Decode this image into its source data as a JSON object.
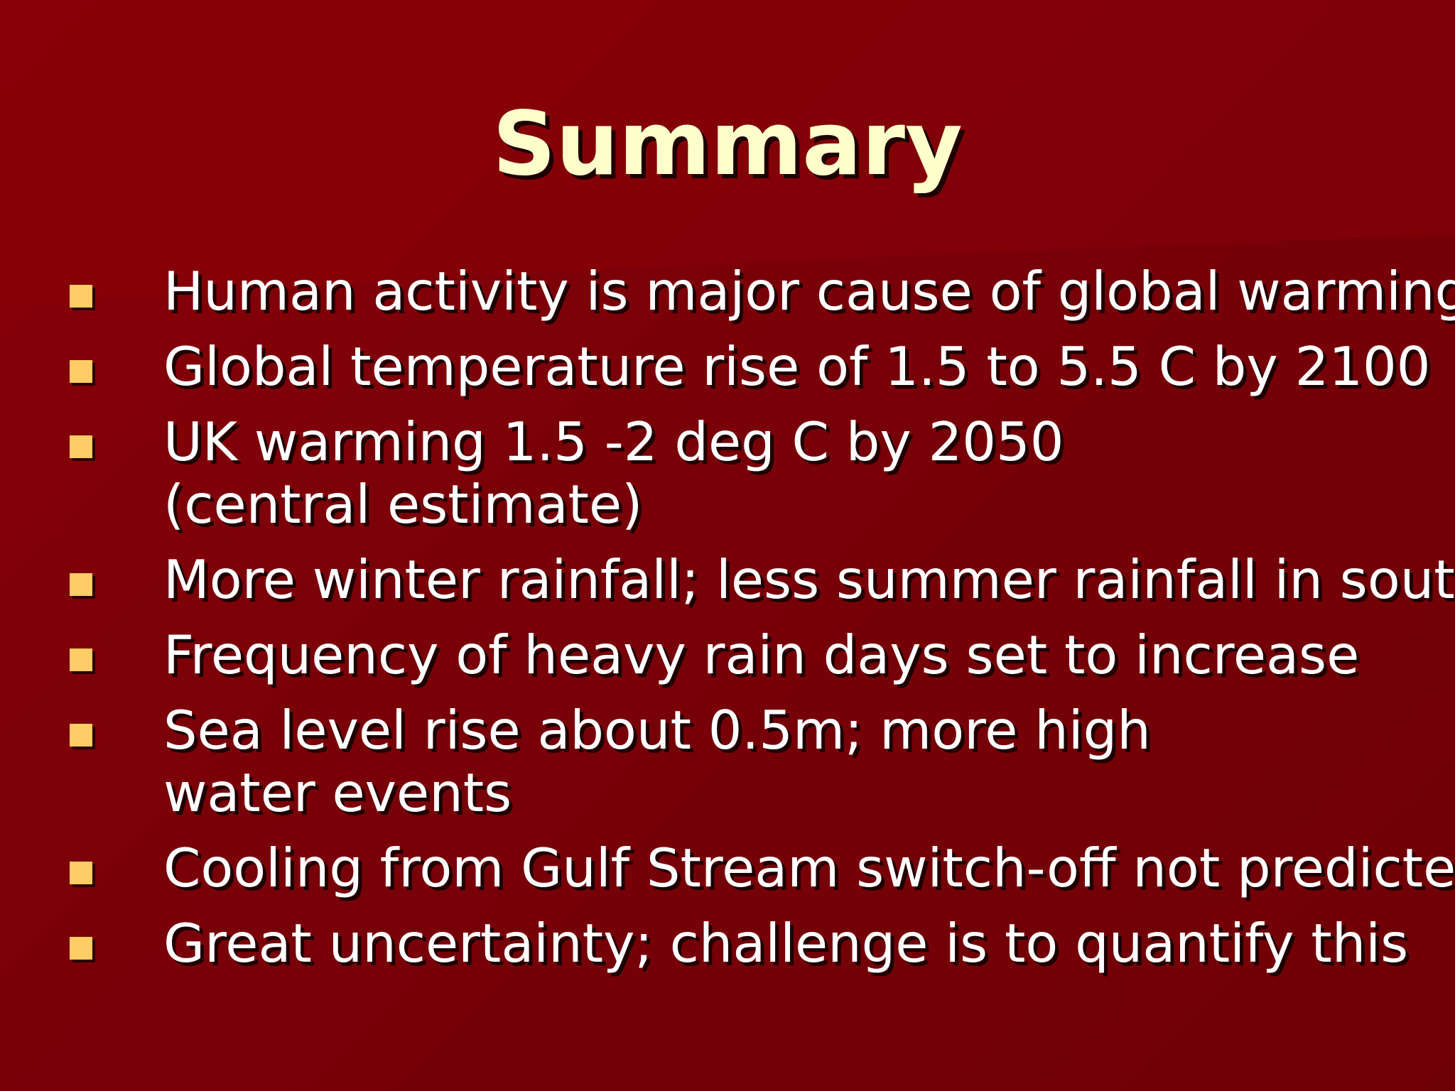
{
  "slide": {
    "title": "Summary",
    "bullets": [
      "Human activity is major cause of global warming",
      "Global temperature rise of 1.5 to 5.5  C by 2100",
      "UK warming 1.5 -2 deg C by 2050 (central estimate)",
      "More winter rainfall; less summer rainfall in south",
      "Frequency of heavy rain days set to increase",
      "Sea level rise about 0.5m; more high water events",
      "Cooling from Gulf Stream switch-off not predicted",
      "Great uncertainty; challenge is to quantify this"
    ]
  },
  "colors": {
    "background": "#7a0008",
    "title": "#ffffcc",
    "text": "#ffffff",
    "bullet_marker": "#ffcc66"
  }
}
